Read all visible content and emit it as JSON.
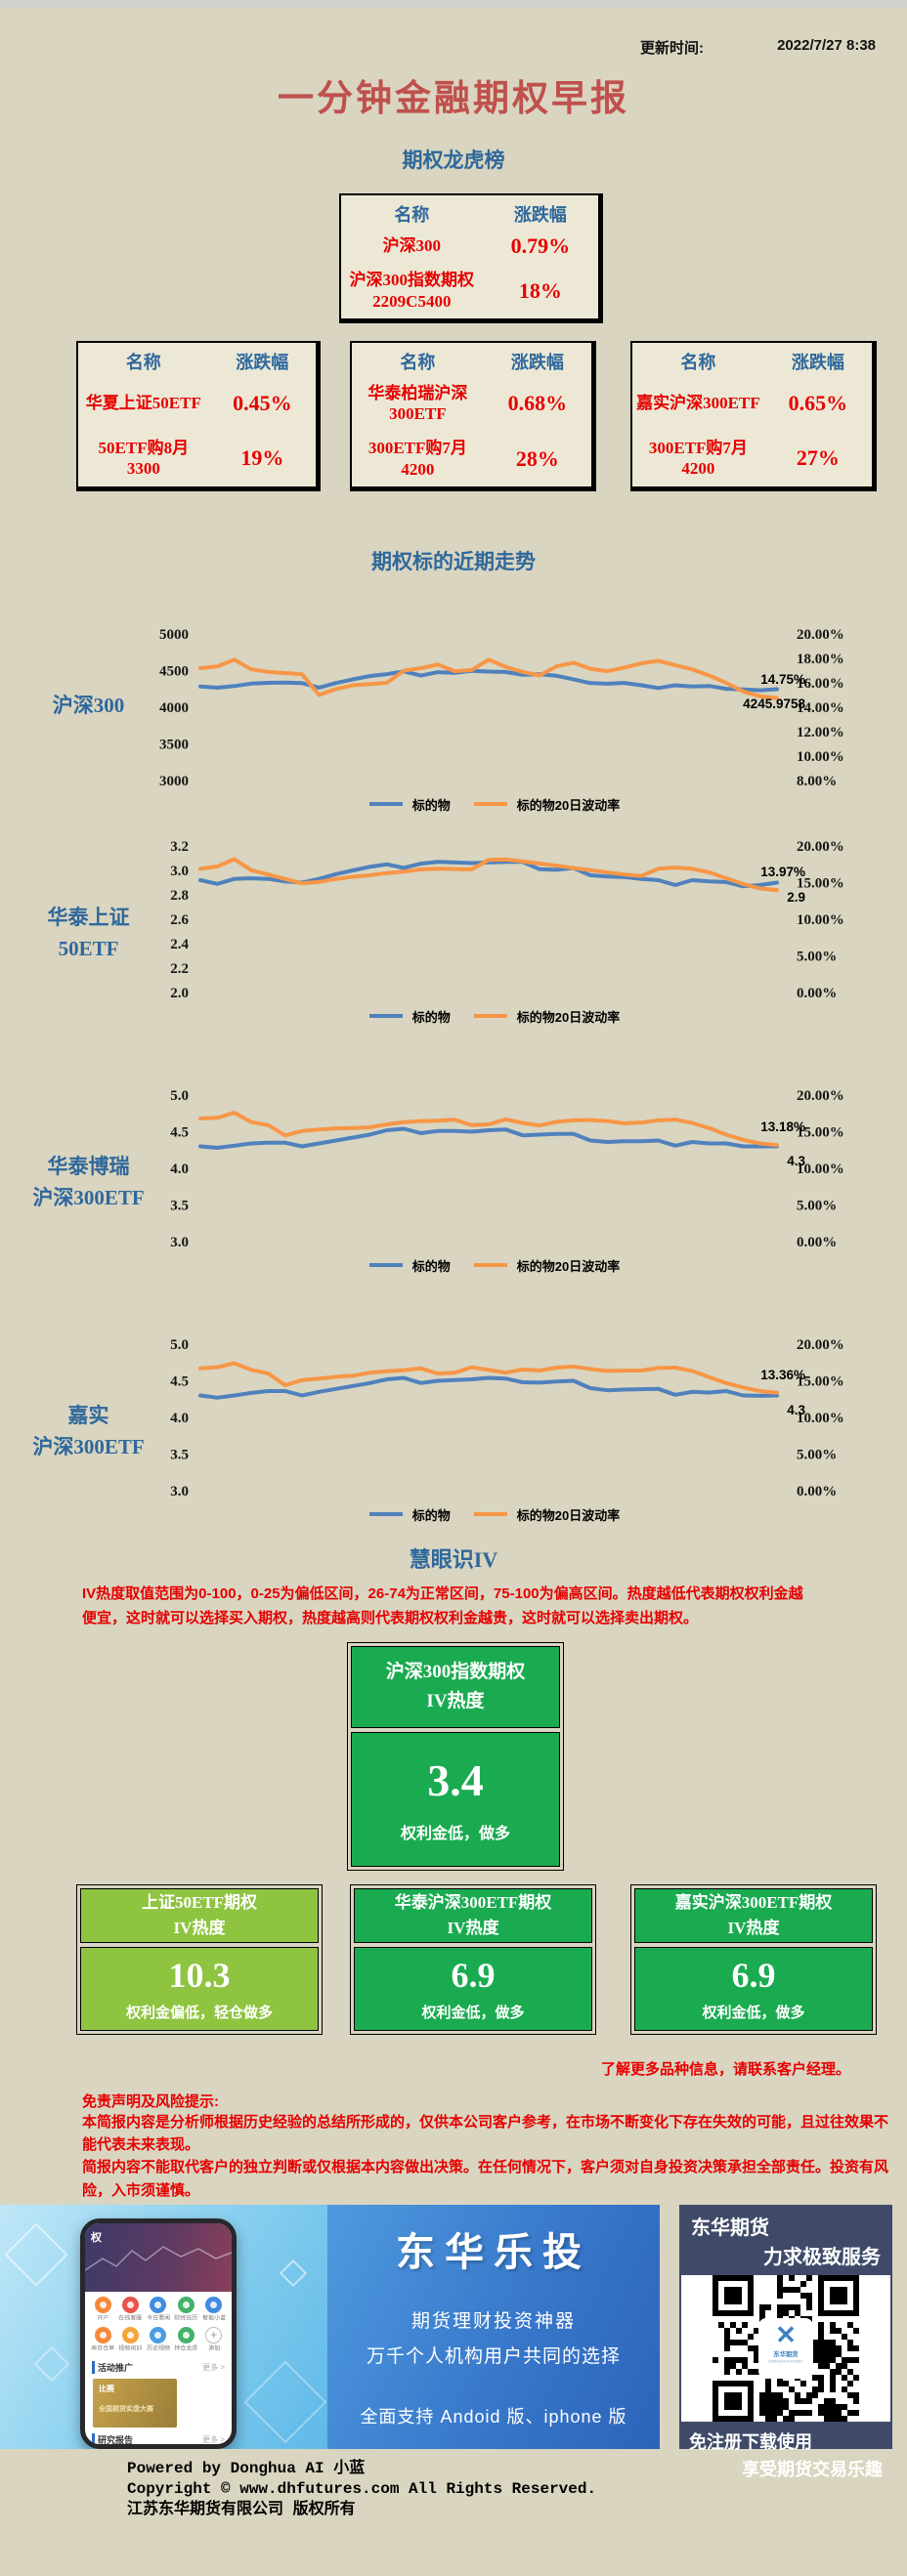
{
  "header": {
    "update_time_label": "更新时间:",
    "update_time_value": "2022/7/27 8:38"
  },
  "title": "一分钟金融期权早报",
  "sections": {
    "leaderboard": "期权龙虎榜",
    "trend": "期权标的近期走势",
    "iv": "慧眼识IV"
  },
  "leaderboard": {
    "col_name": "名称",
    "col_change": "涨跌幅",
    "tables": [
      {
        "rows": [
          {
            "name": "沪深300",
            "value": "0.79%"
          },
          {
            "name": "沪深300指数期权 2209C5400",
            "value": "18%"
          }
        ]
      },
      {
        "rows": [
          {
            "name": "华夏上证50ETF",
            "value": "0.45%"
          },
          {
            "name": "50ETF购8月3300",
            "value": "19%"
          }
        ]
      },
      {
        "rows": [
          {
            "name": "华泰柏瑞沪深300ETF",
            "value": "0.68%"
          },
          {
            "name": "300ETF购7月4200",
            "value": "28%"
          }
        ]
      },
      {
        "rows": [
          {
            "name": "嘉实沪深300ETF",
            "value": "0.65%"
          },
          {
            "name": "300ETF购7月4200",
            "value": "27%"
          }
        ]
      }
    ]
  },
  "colors": {
    "underlying_line": "#4f81bd",
    "volatility_line": "#f79646",
    "accent_red": "#e60000",
    "heading_blue": "#2f689c",
    "title_red": "#c0504d",
    "green_card": "#1aab50",
    "light_green_card": "#8ec440",
    "banner_navy": "#3e4a68"
  },
  "chart_data": [
    {
      "type": "line",
      "label": "沪深300",
      "legend": [
        "标的物",
        "标的物20日波动率"
      ],
      "left_ticks": [
        "5000",
        "4500",
        "4000",
        "3500",
        "3000"
      ],
      "right_ticks": [
        "20.00%",
        "18.00%",
        "16.00%",
        "14.00%",
        "12.00%",
        "10.00%",
        "8.00%"
      ],
      "left_range": [
        3000,
        5000
      ],
      "right_range": [
        8,
        20
      ],
      "end_labels": {
        "top": "14.75%",
        "bottom": "4245.9758"
      },
      "series": [
        {
          "name": "标的物",
          "axis": "left",
          "color": "#4f81bd",
          "values": [
            4283,
            4266,
            4290,
            4322,
            4334,
            4336,
            4330,
            4268,
            4331,
            4382,
            4425,
            4452,
            4490,
            4432,
            4478,
            4470,
            4496,
            4486,
            4481,
            4443,
            4451,
            4430,
            4381,
            4330,
            4321,
            4332,
            4300,
            4262,
            4300,
            4282,
            4291,
            4252,
            4243,
            4232,
            4246
          ]
        },
        {
          "name": "标的物20日波动率",
          "axis": "right",
          "color": "#f79646",
          "values": [
            17.2,
            17.35,
            17.9,
            17.1,
            16.9,
            16.8,
            16.7,
            15.0,
            15.5,
            15.8,
            15.9,
            16.0,
            17.0,
            17.2,
            17.5,
            16.95,
            17.05,
            17.9,
            17.3,
            16.9,
            16.6,
            17.35,
            17.65,
            17.15,
            16.95,
            17.25,
            17.6,
            17.8,
            17.45,
            17.1,
            16.6,
            16.0,
            15.3,
            14.9,
            14.75
          ]
        }
      ]
    },
    {
      "type": "line",
      "label": "华泰上证\n50ETF",
      "legend": [
        "标的物",
        "标的物20日波动率"
      ],
      "left_ticks": [
        "3.2",
        "3.0",
        "2.8",
        "2.6",
        "2.4",
        "2.2",
        "2.0"
      ],
      "right_ticks": [
        "20.00%",
        "15.00%",
        "10.00%",
        "5.00%",
        "0.00%"
      ],
      "left_range": [
        2.0,
        3.2
      ],
      "right_range": [
        0,
        20
      ],
      "end_labels": {
        "top": "13.97%",
        "bottom": "2.9"
      },
      "series": [
        {
          "name": "标的物",
          "axis": "left",
          "color": "#4f81bd",
          "values": [
            2.92,
            2.89,
            2.93,
            2.935,
            2.93,
            2.91,
            2.9,
            2.93,
            2.97,
            3.0,
            3.03,
            3.05,
            3.02,
            3.055,
            3.07,
            3.065,
            3.06,
            3.065,
            3.07,
            3.07,
            3.01,
            3.005,
            3.02,
            2.96,
            2.95,
            2.945,
            2.93,
            2.92,
            2.88,
            2.92,
            2.91,
            2.905,
            2.87,
            2.88,
            2.9
          ]
        },
        {
          "name": "标的物20日波动率",
          "axis": "right",
          "color": "#f79646",
          "values": [
            16.9,
            17.2,
            18.2,
            16.7,
            16.1,
            15.5,
            14.9,
            15.1,
            15.5,
            15.8,
            16.0,
            16.3,
            16.5,
            16.8,
            16.9,
            16.85,
            16.8,
            18.1,
            18.15,
            17.9,
            17.6,
            17.3,
            17.0,
            16.7,
            16.4,
            16.1,
            15.9,
            16.9,
            17.05,
            16.9,
            16.4,
            15.6,
            14.8,
            14.2,
            13.97
          ]
        }
      ]
    },
    {
      "type": "line",
      "label": "华泰博瑞\n沪深300ETF",
      "legend": [
        "标的物",
        "标的物20日波动率"
      ],
      "left_ticks": [
        "5.0",
        "4.5",
        "4.0",
        "3.5",
        "3.0"
      ],
      "right_ticks": [
        "20.00%",
        "15.00%",
        "10.00%",
        "5.00%",
        "0.00%"
      ],
      "left_range": [
        3.0,
        5.0
      ],
      "right_range": [
        0,
        20
      ],
      "end_labels": {
        "top": "13.18%",
        "bottom": "4.3"
      },
      "series": [
        {
          "name": "标的物",
          "axis": "left",
          "color": "#4f81bd",
          "values": [
            4.3,
            4.28,
            4.31,
            4.34,
            4.35,
            4.35,
            4.3,
            4.34,
            4.38,
            4.42,
            4.46,
            4.52,
            4.54,
            4.48,
            4.51,
            4.51,
            4.5,
            4.52,
            4.53,
            4.45,
            4.46,
            4.47,
            4.47,
            4.38,
            4.36,
            4.37,
            4.37,
            4.38,
            4.31,
            4.36,
            4.34,
            4.34,
            4.3,
            4.3,
            4.3
          ]
        },
        {
          "name": "标的物20日波动率",
          "axis": "right",
          "color": "#f79646",
          "values": [
            16.8,
            16.9,
            17.6,
            16.3,
            15.9,
            14.5,
            15.1,
            15.3,
            15.45,
            15.5,
            15.6,
            16.0,
            16.3,
            16.45,
            16.5,
            16.65,
            15.9,
            16.0,
            16.7,
            16.2,
            15.85,
            16.35,
            16.55,
            16.6,
            16.45,
            16.15,
            16.25,
            16.55,
            16.65,
            16.2,
            15.5,
            14.6,
            13.9,
            13.4,
            13.18
          ]
        }
      ]
    },
    {
      "type": "line",
      "label": "嘉实\n沪深300ETF",
      "legend": [
        "标的物",
        "标的物20日波动率"
      ],
      "left_ticks": [
        "5.0",
        "4.5",
        "4.0",
        "3.5",
        "3.0"
      ],
      "right_ticks": [
        "20.00%",
        "15.00%",
        "10.00%",
        "5.00%",
        "0.00%"
      ],
      "left_range": [
        3.0,
        5.0
      ],
      "right_range": [
        0,
        20
      ],
      "end_labels": {
        "top": "13.36%",
        "bottom": "4.3"
      },
      "series": [
        {
          "name": "标的物",
          "axis": "left",
          "color": "#4f81bd",
          "values": [
            4.3,
            4.27,
            4.3,
            4.335,
            4.36,
            4.36,
            4.3,
            4.35,
            4.39,
            4.43,
            4.47,
            4.52,
            4.54,
            4.47,
            4.5,
            4.51,
            4.52,
            4.54,
            4.53,
            4.48,
            4.475,
            4.49,
            4.5,
            4.4,
            4.37,
            4.38,
            4.385,
            4.39,
            4.31,
            4.35,
            4.34,
            4.36,
            4.3,
            4.295,
            4.3
          ]
        },
        {
          "name": "标的物20日波动率",
          "axis": "right",
          "color": "#f79646",
          "values": [
            16.7,
            16.85,
            17.4,
            16.5,
            16.0,
            14.4,
            15.1,
            15.3,
            15.55,
            15.7,
            16.1,
            16.3,
            16.45,
            16.7,
            16.0,
            16.1,
            16.85,
            16.5,
            16.1,
            16.55,
            16.4,
            16.8,
            16.95,
            16.6,
            16.35,
            16.4,
            16.4,
            16.75,
            16.8,
            16.35,
            15.5,
            14.7,
            14.1,
            13.6,
            13.36
          ]
        }
      ]
    }
  ],
  "iv": {
    "title": "慧眼识IV",
    "description": "IV热度取值范围为0-100，0-25为偏低区间，26-74为正常区间，75-100为偏高区间。热度越低代表期权权利金越便宜，这时就可以选择买入期权，热度越高则代表期权权利金越贵，这时就可以选择卖出期权。",
    "featured": {
      "title": "沪深300指数期权\nIV热度",
      "value": "3.4",
      "note": "权利金低，做多",
      "color": "#1aab50"
    },
    "cards": [
      {
        "title": "上证50ETF期权\nIV热度",
        "value": "10.3",
        "note": "权利金偏低，轻仓做多",
        "color": "#8ec440"
      },
      {
        "title": "华泰沪深300ETF期权\nIV热度",
        "value": "6.9",
        "note": "权利金低，做多",
        "color": "#1aab50"
      },
      {
        "title": "嘉实沪深300ETF期权\nIV热度",
        "value": "6.9",
        "note": "权利金低，做多",
        "color": "#1aab50"
      }
    ],
    "more_info": "了解更多品种信息，请联系客户经理。"
  },
  "disclaimer": {
    "heading": "免责声明及风险提示:",
    "body": "本简报内容是分析师根据历史经验的总结所形成的，仅供本公司客户参考，在市场不断变化下存在失效的可能，且过往效果不能代表未来表现。\n简报内容不能取代客户的独立判断或仅根据本内容做出决策。在任何情况下，客户须对自身投资决策承担全部责任。投资有风险，入市须谨慎。"
  },
  "banner": {
    "app_name": "东华乐投",
    "tagline1": "期货理财投资神器",
    "tagline2": "万千个人机构用户共同的选择",
    "support": "全面支持 Andoid 版、iphone 版",
    "brand": "东华期货",
    "brand_slogan": "力求极致服务",
    "qr_logo_text": "东华期货",
    "qr_logo_sub": "DONGHUA FUTURES",
    "qr_note1": "免注册下载使用",
    "qr_note2": "享受期货交易乐趣",
    "phone": {
      "promo_logo": "权",
      "icon_labels_row1": [
        "开户",
        "在线客服",
        "今日要闻",
        "财经日历",
        "智能小蓝"
      ],
      "icon_labels_row2": [
        "库存仓单",
        "视频培训",
        "历史视频",
        "持仓龙虎",
        "添加"
      ],
      "section1": "活动推广",
      "section1_more": "更多 >",
      "promo_tag": "比赛",
      "promo_title": "全国期货实盘大赛",
      "section2": "研究报告",
      "section2_more": "更多 >"
    }
  },
  "footer": {
    "lines": [
      "Powered by Donghua AI 小蓝",
      "Copyright © www.dhfutures.com  All Rights Reserved.",
      "江苏东华期货有限公司  版权所有"
    ]
  }
}
